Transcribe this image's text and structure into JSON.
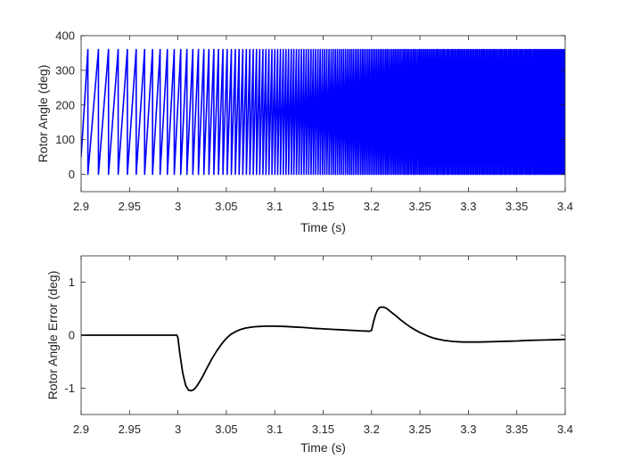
{
  "chart_data": [
    {
      "type": "line",
      "xlabel": "Time (s)",
      "ylabel": "Rotor Angle (deg)",
      "xlim": [
        2.9,
        3.4
      ],
      "ylim": [
        -50,
        400
      ],
      "xticks": [
        2.9,
        2.95,
        3.0,
        3.05,
        3.1,
        3.15,
        3.2,
        3.25,
        3.3,
        3.35,
        3.4
      ],
      "xtick_labels": [
        "2.9",
        "2.95",
        "3",
        "3.05",
        "3.1",
        "3.15",
        "3.2",
        "3.25",
        "3.3",
        "3.35",
        "3.4"
      ],
      "yticks": [
        0,
        100,
        200,
        300,
        400
      ],
      "ytick_labels": [
        "0",
        "100",
        "200",
        "300",
        "400"
      ],
      "grid": false,
      "series": [
        {
          "color": "#0000ff",
          "description": "sawtooth wrapping 0-360 deg with increasing frequency",
          "wrap_times": [
            2.907,
            2.9179,
            2.9283,
            2.9383,
            2.9478,
            2.9569,
            2.9656,
            2.9738,
            2.9816,
            2.9891,
            2.9962,
            3.0029,
            3.0093,
            3.0154,
            3.0212,
            3.0268,
            3.032,
            3.0371,
            3.0419,
            3.0465,
            3.0509,
            3.0552,
            3.0593,
            3.0632,
            3.067,
            3.0707,
            3.0743,
            3.0778,
            3.0812,
            3.0845,
            3.0878,
            3.0909,
            3.094,
            3.0971,
            3.1001,
            3.103,
            3.1059,
            3.1088,
            3.1116,
            3.1143,
            3.1171,
            3.1197,
            3.1224,
            3.125,
            3.1276,
            3.1301,
            3.1326,
            3.1351,
            3.1375,
            3.1399,
            3.1423,
            3.1447,
            3.147,
            3.1493,
            3.1516,
            3.1538,
            3.1561,
            3.1583,
            3.1604,
            3.1626,
            3.1647,
            3.1668,
            3.1689,
            3.171,
            3.1731,
            3.1751,
            3.1771,
            3.1791,
            3.1811,
            3.1831,
            3.185,
            3.1869,
            3.1889,
            3.1908,
            3.1926,
            3.1945,
            3.1964,
            3.1982,
            3.2001,
            3.2019,
            3.2037,
            3.2055,
            3.2073,
            3.2091,
            3.2108,
            3.2126,
            3.2144,
            3.2161,
            3.2178,
            3.2196,
            3.2213,
            3.223,
            3.2247,
            3.2264,
            3.2281,
            3.2298,
            3.2315,
            3.2332,
            3.2348,
            3.2365,
            3.2381,
            3.2398,
            3.2414,
            3.2431,
            3.2447,
            3.2463,
            3.248,
            3.2496,
            3.2512,
            3.2528,
            3.2544,
            3.256,
            3.2576,
            3.2592,
            3.2608,
            3.2624,
            3.264,
            3.2656,
            3.2672,
            3.2687,
            3.2703,
            3.2719,
            3.2735,
            3.275,
            3.2766,
            3.2782,
            3.2797,
            3.2813,
            3.2829,
            3.2844,
            3.286,
            3.2875,
            3.2891,
            3.2906,
            3.2922,
            3.2937,
            3.2953,
            3.2968,
            3.2984,
            3.2999,
            3.3015,
            3.303,
            3.3046,
            3.3061,
            3.3077,
            3.3092,
            3.3108,
            3.3123,
            3.3139,
            3.3154,
            3.3169,
            3.3185,
            3.32,
            3.3216,
            3.3231,
            3.3247,
            3.3262,
            3.3277,
            3.3293,
            3.3308,
            3.3324,
            3.3339,
            3.3354,
            3.337,
            3.3385,
            3.34,
            3.3416,
            3.3431,
            3.3446,
            3.3462,
            3.3477,
            3.3492,
            3.3507,
            3.3523,
            3.3538,
            3.3553,
            3.3568,
            3.3584,
            3.3599,
            3.3614,
            3.3629,
            3.3644,
            3.3659,
            3.3675,
            3.369,
            3.3705,
            3.372,
            3.3735,
            3.375,
            3.3765,
            3.378,
            3.3795,
            3.381,
            3.3825,
            3.384,
            3.3855,
            3.387,
            3.3885,
            3.39,
            3.3915,
            3.393,
            3.3945,
            3.396,
            3.3975,
            3.399
          ],
          "start_value": 50,
          "end_value": 345
        }
      ]
    },
    {
      "type": "line",
      "xlabel": "Time (s)",
      "ylabel": "Rotor Angle Error (deg)",
      "xlim": [
        2.9,
        3.4
      ],
      "ylim": [
        -1.5,
        1.5
      ],
      "xticks": [
        2.9,
        2.95,
        3.0,
        3.05,
        3.1,
        3.15,
        3.2,
        3.25,
        3.3,
        3.35,
        3.4
      ],
      "xtick_labels": [
        "2.9",
        "2.95",
        "3",
        "3.05",
        "3.1",
        "3.15",
        "3.2",
        "3.25",
        "3.3",
        "3.35",
        "3.4"
      ],
      "yticks": [
        -1,
        0,
        1
      ],
      "ytick_labels": [
        "-1",
        "0",
        "1"
      ],
      "grid": false,
      "series": [
        {
          "color": "#000000",
          "x": [
            2.9,
            2.95,
            2.999,
            3.0,
            3.002,
            3.005,
            3.008,
            3.011,
            3.014,
            3.017,
            3.02,
            3.025,
            3.03,
            3.035,
            3.04,
            3.045,
            3.05,
            3.055,
            3.06,
            3.065,
            3.07,
            3.075,
            3.08,
            3.085,
            3.09,
            3.095,
            3.1,
            3.11,
            3.12,
            3.13,
            3.14,
            3.15,
            3.16,
            3.17,
            3.18,
            3.19,
            3.198,
            3.2,
            3.202,
            3.204,
            3.206,
            3.208,
            3.21,
            3.212,
            3.214,
            3.216,
            3.22,
            3.225,
            3.23,
            3.235,
            3.24,
            3.245,
            3.25,
            3.255,
            3.26,
            3.265,
            3.27,
            3.275,
            3.28,
            3.285,
            3.29,
            3.295,
            3.3,
            3.31,
            3.32,
            3.33,
            3.34,
            3.35,
            3.36,
            3.37,
            3.38,
            3.39,
            3.4
          ],
          "y": [
            0.0,
            0.0,
            0.0,
            -0.05,
            -0.35,
            -0.72,
            -0.95,
            -1.04,
            -1.05,
            -1.02,
            -0.95,
            -0.8,
            -0.62,
            -0.45,
            -0.3,
            -0.17,
            -0.06,
            0.02,
            0.07,
            0.11,
            0.135,
            0.15,
            0.16,
            0.165,
            0.17,
            0.17,
            0.17,
            0.165,
            0.155,
            0.145,
            0.13,
            0.12,
            0.11,
            0.1,
            0.09,
            0.08,
            0.075,
            0.09,
            0.25,
            0.38,
            0.47,
            0.52,
            0.53,
            0.53,
            0.52,
            0.5,
            0.44,
            0.37,
            0.29,
            0.22,
            0.155,
            0.1,
            0.05,
            0.01,
            -0.03,
            -0.06,
            -0.08,
            -0.1,
            -0.11,
            -0.12,
            -0.125,
            -0.13,
            -0.13,
            -0.13,
            -0.125,
            -0.12,
            -0.115,
            -0.11,
            -0.1,
            -0.095,
            -0.09,
            -0.085,
            -0.08
          ]
        }
      ]
    }
  ]
}
